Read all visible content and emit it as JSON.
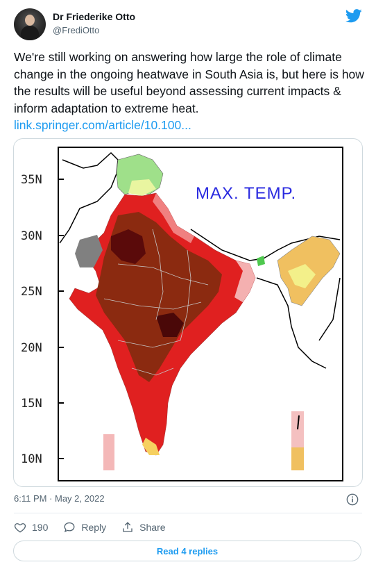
{
  "tweet": {
    "author_name": "Dr Friederike Otto",
    "author_handle": "@FrediOtto",
    "text": "We're still working on answering how large the role of climate change in the ongoing heatwave in South Asia is, but here is how the results will be useful beyond assessing current impacts & inform adaptation to extreme heat.",
    "link_text": "link.springer.com/article/10.100...",
    "timestamp": "6:11 PM · May 2, 2022",
    "likes": "190",
    "reply_label": "Reply",
    "share_label": "Share",
    "read_replies_label": "Read 4 replies",
    "accent_color": "#1d9bf0"
  },
  "map": {
    "title": "MAX. TEMP.",
    "lat_labels": [
      "35N",
      "30N",
      "25N",
      "20N",
      "15N",
      "10N"
    ],
    "icons": {
      "bird": "twitter-bird-icon",
      "info": "info-icon",
      "like": "heart-icon",
      "reply": "reply-bubble-icon",
      "share": "share-icon"
    }
  }
}
